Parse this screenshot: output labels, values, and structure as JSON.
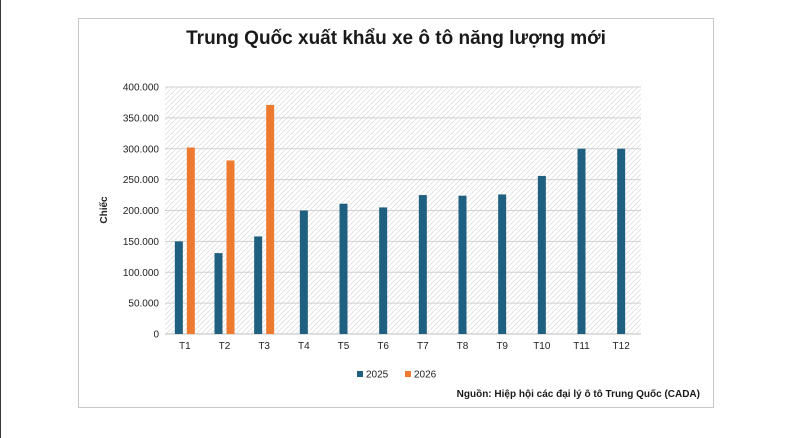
{
  "chart_data": {
    "type": "bar",
    "title": "Trung Quốc xuất khẩu xe ô tô năng lượng mới",
    "ylabel": "Chiếc",
    "xlabel": "",
    "categories": [
      "T1",
      "T2",
      "T3",
      "T4",
      "T5",
      "T6",
      "T7",
      "T8",
      "T9",
      "T10",
      "T11",
      "T12"
    ],
    "ylim": [
      0,
      400000
    ],
    "yticks": [
      0,
      50000,
      100000,
      150000,
      200000,
      250000,
      300000,
      350000,
      400000
    ],
    "ytick_labels": [
      "0",
      "50.000",
      "100.000",
      "150.000",
      "200.000",
      "250.000",
      "300.000",
      "350.000",
      "400.000"
    ],
    "series": [
      {
        "name": "2025",
        "color": "#1f5f7f",
        "values": [
          150000,
          131000,
          158000,
          200000,
          211000,
          205000,
          225000,
          224000,
          226000,
          256000,
          300000,
          300000
        ]
      },
      {
        "name": "2026",
        "color": "#ee7a30",
        "values": [
          302000,
          281000,
          371000,
          null,
          null,
          null,
          null,
          null,
          null,
          null,
          null,
          null
        ]
      }
    ],
    "grid": true,
    "legend_position": "bottom",
    "source": "Nguồn: Hiệp hội các đại lý ô tô Trung Quốc (CADA)"
  }
}
